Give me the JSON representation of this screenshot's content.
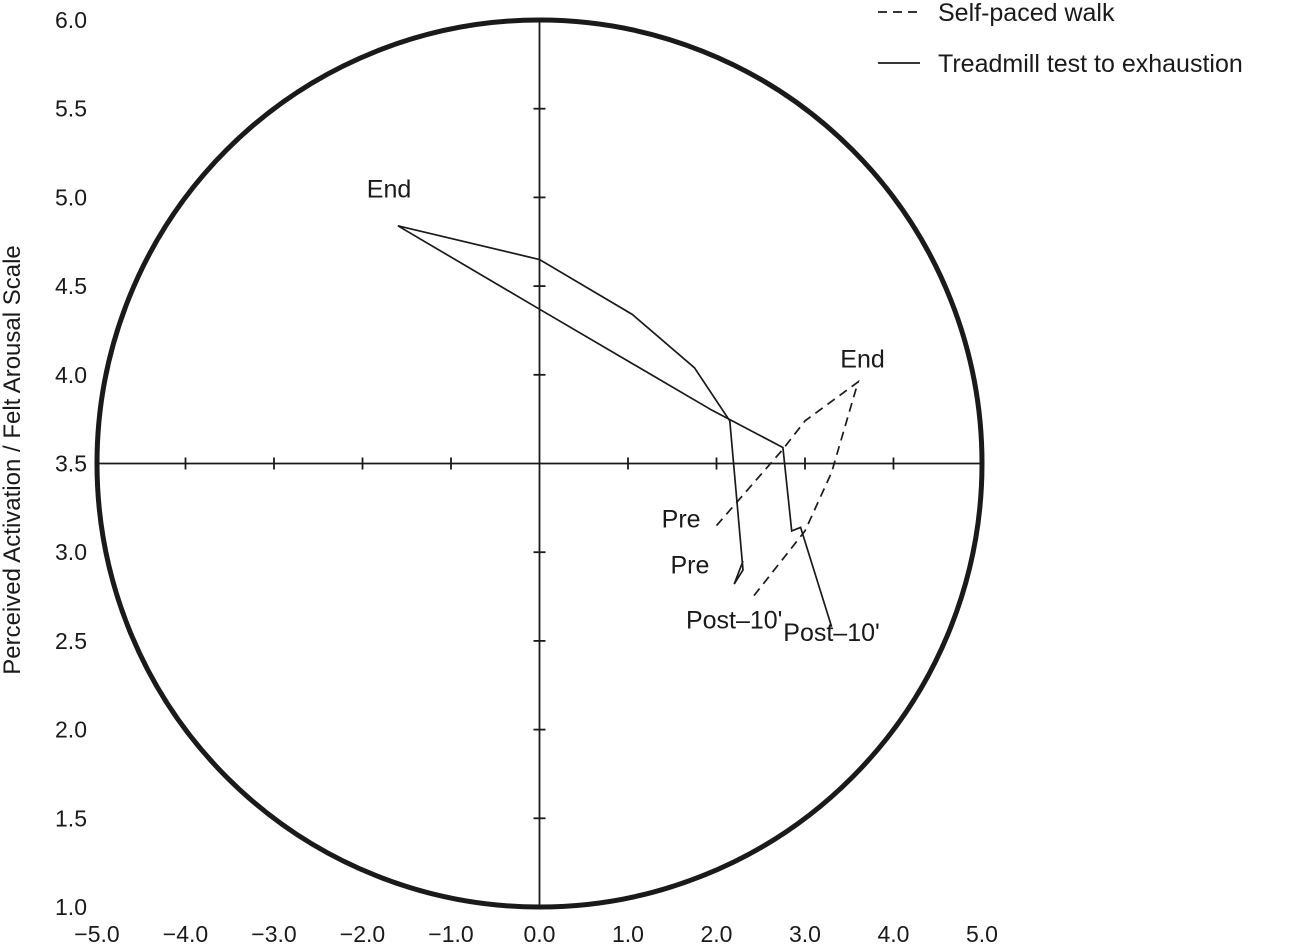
{
  "chart_data": {
    "type": "line",
    "title": "",
    "xlabel": "",
    "ylabel": "Perceived Activation / Felt Arousal Scale",
    "xlim": [
      -5.0,
      5.0
    ],
    "ylim": [
      1.0,
      6.0
    ],
    "x_ticks": [
      "−5.0",
      "−4.0",
      "−3.0",
      "−2.0",
      "−1.0",
      "0.0",
      "1.0",
      "2.0",
      "3.0",
      "4.0",
      "5.0"
    ],
    "x_tick_values": [
      -5,
      -4,
      -3,
      -2,
      -1,
      0,
      1,
      2,
      3,
      4,
      5
    ],
    "y_ticks": [
      "1.0",
      "1.5",
      "2.0",
      "2.5",
      "3.0",
      "3.5",
      "4.0",
      "4.5",
      "5.0",
      "5.5",
      "6.0"
    ],
    "y_tick_values": [
      1.0,
      1.5,
      2.0,
      2.5,
      3.0,
      3.5,
      4.0,
      4.5,
      5.0,
      5.5,
      6.0
    ],
    "axes_cross_at": {
      "x": 0.0,
      "y": 3.5
    },
    "grid": false,
    "circumplex_circle": true,
    "legend_position": "top-right",
    "series": [
      {
        "name": "Self-paced walk",
        "style": "dashed",
        "color": "#1a1a1a",
        "points": [
          {
            "x": 2.0,
            "y": 3.15,
            "label": "Pre"
          },
          {
            "x": 2.75,
            "y": 3.58
          },
          {
            "x": 3.0,
            "y": 3.74
          },
          {
            "x": 3.6,
            "y": 3.96,
            "label": "End"
          },
          {
            "x": 3.3,
            "y": 3.45
          },
          {
            "x": 3.0,
            "y": 3.12
          },
          {
            "x": 2.4,
            "y": 2.74,
            "label": "Post–10'"
          }
        ]
      },
      {
        "name": "Treadmill test to exhaustion",
        "style": "solid",
        "color": "#1a1a1a",
        "points": [
          {
            "x": 2.3,
            "y": 2.95
          },
          {
            "x": 2.2,
            "y": 2.82,
            "label": "Pre"
          },
          {
            "x": 2.3,
            "y": 2.9
          },
          {
            "x": 2.15,
            "y": 3.74
          },
          {
            "x": 1.75,
            "y": 4.04
          },
          {
            "x": 1.05,
            "y": 4.34
          },
          {
            "x": 0.0,
            "y": 4.65
          },
          {
            "x": -1.6,
            "y": 4.84,
            "label": "End"
          },
          {
            "x": 0.0,
            "y": 4.37
          },
          {
            "x": 1.95,
            "y": 3.8
          },
          {
            "x": 2.75,
            "y": 3.59
          },
          {
            "x": 2.85,
            "y": 3.12
          },
          {
            "x": 2.95,
            "y": 3.14
          },
          {
            "x": 3.3,
            "y": 2.58,
            "label": "Post–10'"
          }
        ]
      }
    ],
    "annotations": [
      {
        "text": "End",
        "series": "Treadmill test to exhaustion",
        "x": -1.7,
        "y": 5.0
      },
      {
        "text": "End",
        "series": "Self-paced walk",
        "x": 3.65,
        "y": 4.04
      },
      {
        "text": "Pre",
        "series": "Self-paced walk",
        "x": 1.6,
        "y": 3.14
      },
      {
        "text": "Pre",
        "series": "Treadmill test to exhaustion",
        "x": 1.7,
        "y": 2.88
      },
      {
        "text": "Post–10'",
        "series": "Self-paced walk",
        "x": 2.2,
        "y": 2.57
      },
      {
        "text": "Post–10'",
        "series": "Treadmill test to exhaustion",
        "x": 3.3,
        "y": 2.5
      }
    ]
  }
}
